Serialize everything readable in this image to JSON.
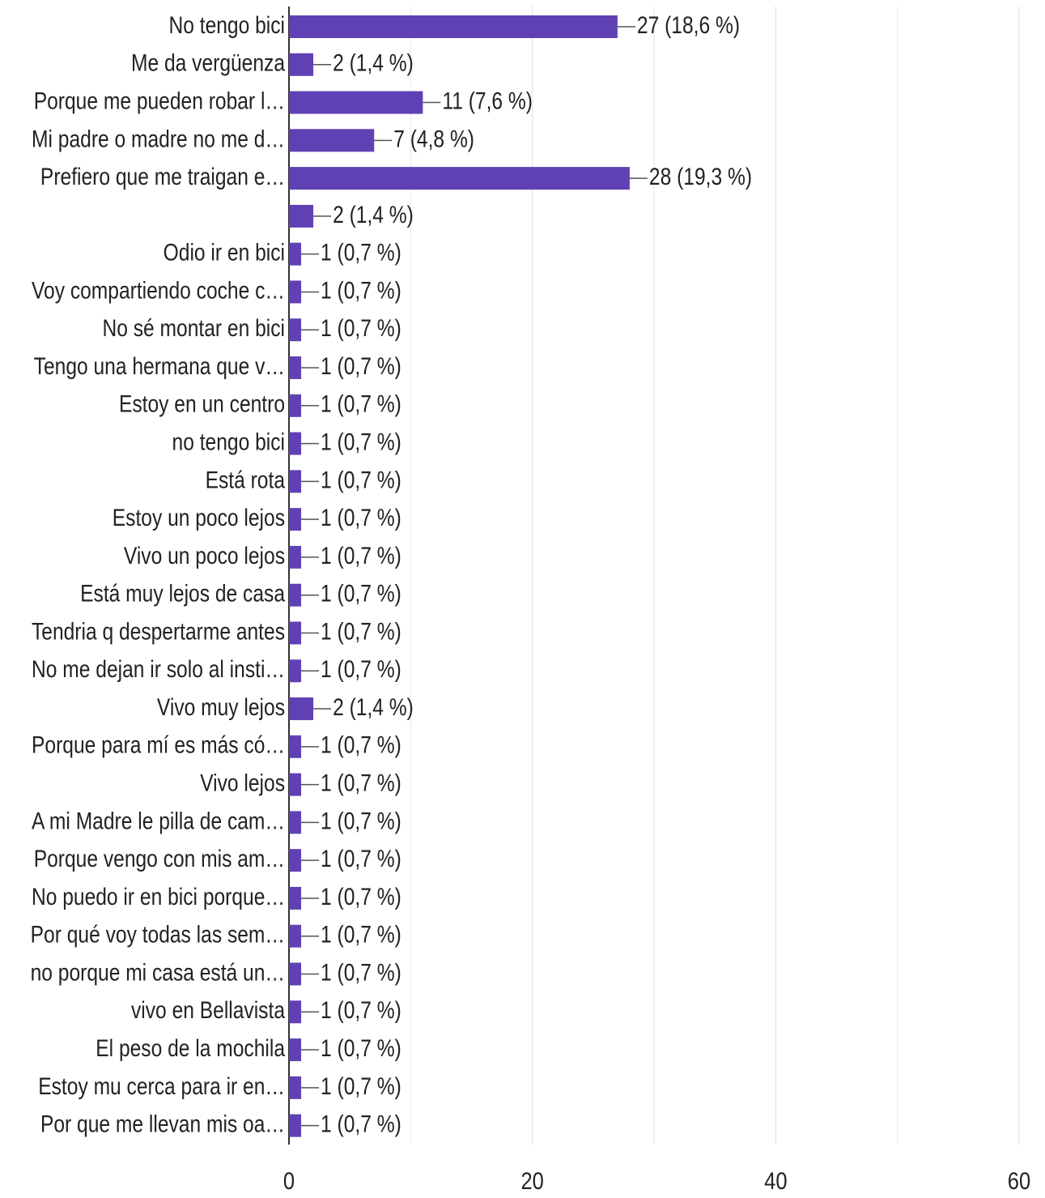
{
  "chart_data": {
    "type": "bar",
    "orientation": "horizontal",
    "color": "#6041b5",
    "categories": [
      "No tengo bici",
      "Me da vergüenza",
      "Porque me pueden robar l…",
      "Mi padre o madre no me d…",
      "Prefiero que me traigan e…",
      null,
      "Odio ir en bici",
      "Voy compartiendo coche c…",
      "No sé montar en bici",
      "Tengo una hermana que v…",
      "Estoy en un centro",
      "no tengo bici",
      "Está rota",
      "Estoy un poco lejos",
      "Vivo un poco lejos",
      "Está muy lejos de casa",
      "Tendria q despertarme antes",
      "No me dejan ir solo al insti…",
      "Vivo muy lejos",
      "Porque para mí es más có…",
      "Vivo lejos",
      "A mi Madre le pilla de cam…",
      "Porque vengo con mis am…",
      "No puedo ir en bici porque…",
      "Por qué voy todas las sem…",
      "no porque mi casa está un…",
      "vivo en Bellavista",
      "El peso de la mochila",
      "Estoy mu cerca para ir en…",
      "Por que me llevan mis oa…"
    ],
    "values": [
      27,
      2,
      11,
      7,
      28,
      2,
      1,
      1,
      1,
      1,
      1,
      1,
      1,
      1,
      1,
      1,
      1,
      1,
      2,
      1,
      1,
      1,
      1,
      1,
      1,
      1,
      1,
      1,
      1,
      1
    ],
    "value_labels": [
      "27 (18,6 %)",
      "2 (1,4 %)",
      "11 (7,6 %)",
      "7 (4,8 %)",
      "28 (19,3 %)",
      "2 (1,4 %)",
      "1 (0,7 %)",
      "1 (0,7 %)",
      "1 (0,7 %)",
      "1 (0,7 %)",
      "1 (0,7 %)",
      "1 (0,7 %)",
      "1 (0,7 %)",
      "1 (0,7 %)",
      "1 (0,7 %)",
      "1 (0,7 %)",
      "1 (0,7 %)",
      "1 (0,7 %)",
      "2 (1,4 %)",
      "1 (0,7 %)",
      "1 (0,7 %)",
      "1 (0,7 %)",
      "1 (0,7 %)",
      "1 (0,7 %)",
      "1 (0,7 %)",
      "1 (0,7 %)",
      "1 (0,7 %)",
      "1 (0,7 %)",
      "1 (0,7 %)",
      "1 (0,7 %)"
    ],
    "xlim": [
      0,
      60
    ],
    "xticks": [
      0,
      20,
      40,
      60
    ],
    "minor_xticks": [
      10,
      30,
      50
    ],
    "grid": true
  }
}
